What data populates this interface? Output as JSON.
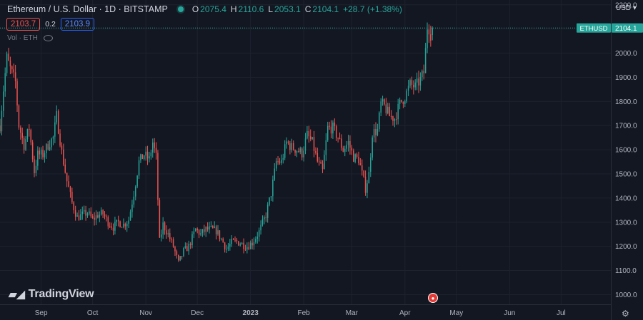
{
  "header": {
    "title": "Ethereum / U.S. Dollar · 1D · BITSTAMP",
    "ohlc": [
      {
        "k": "O",
        "v": "2075.4"
      },
      {
        "k": "H",
        "v": "2110.6"
      },
      {
        "k": "L",
        "v": "2053.1"
      },
      {
        "k": "C",
        "v": "2104.1"
      }
    ],
    "change": "+28.7 (+1.38%)",
    "bid": "2103.7",
    "spread": "0.2",
    "ask": "2103.9",
    "volume_label": "Vol · ETH"
  },
  "currency_label": "USD",
  "brand": "TradingView",
  "colors": {
    "up": "#26a69a",
    "down": "#ef5350",
    "background": "#131722",
    "grid": "#2a2e39"
  },
  "chart_data": {
    "type": "candlestick",
    "symbol_label": "ETHUSD",
    "last_price": 2104.1,
    "last_price_label": "2104.1",
    "y_ticks": [
      1000,
      1100,
      1200,
      1300,
      1400,
      1500,
      1600,
      1700,
      1800,
      1900,
      2000,
      2100,
      2200
    ],
    "y_tick_labels": [
      "1000.0",
      "1100.0",
      "1200.0",
      "1300.0",
      "1400.0",
      "1500.0",
      "1600.0",
      "1700.0",
      "1800.0",
      "1900.0",
      "2000.0",
      "2100.0",
      "2200.0"
    ],
    "x_ticks": [
      {
        "label": "Sep",
        "date": "2022-09-01"
      },
      {
        "label": "Oct",
        "date": "2022-10-01"
      },
      {
        "label": "Nov",
        "date": "2022-11-01"
      },
      {
        "label": "Dec",
        "date": "2022-12-01"
      },
      {
        "label": "2023",
        "date": "2023-01-01"
      },
      {
        "label": "Feb",
        "date": "2023-02-01"
      },
      {
        "label": "Mar",
        "date": "2023-03-01"
      },
      {
        "label": "Apr",
        "date": "2023-04-01"
      },
      {
        "label": "May",
        "date": "2023-05-01"
      },
      {
        "label": "Jun",
        "date": "2023-06-01"
      },
      {
        "label": "Jul",
        "date": "2023-07-01"
      }
    ],
    "x_range": [
      "2022-08-08",
      "2023-07-30"
    ],
    "y_range": [
      960,
      2220
    ],
    "keypoints": [
      [
        "2022-08-08",
        1700
      ],
      [
        "2022-08-10",
        1850
      ],
      [
        "2022-08-12",
        1980
      ],
      [
        "2022-08-14",
        1935
      ],
      [
        "2022-08-17",
        1880
      ],
      [
        "2022-08-19",
        1700
      ],
      [
        "2022-08-22",
        1620
      ],
      [
        "2022-08-25",
        1690
      ],
      [
        "2022-08-28",
        1510
      ],
      [
        "2022-08-30",
        1580
      ],
      [
        "2022-09-02",
        1580
      ],
      [
        "2022-09-05",
        1620
      ],
      [
        "2022-09-08",
        1650
      ],
      [
        "2022-09-10",
        1740
      ],
      [
        "2022-09-13",
        1590
      ],
      [
        "2022-09-16",
        1470
      ],
      [
        "2022-09-19",
        1380
      ],
      [
        "2022-09-22",
        1320
      ],
      [
        "2022-09-25",
        1330
      ],
      [
        "2022-09-28",
        1340
      ],
      [
        "2022-10-01",
        1310
      ],
      [
        "2022-10-04",
        1330
      ],
      [
        "2022-10-07",
        1335
      ],
      [
        "2022-10-10",
        1300
      ],
      [
        "2022-10-13",
        1280
      ],
      [
        "2022-10-16",
        1300
      ],
      [
        "2022-10-19",
        1290
      ],
      [
        "2022-10-22",
        1310
      ],
      [
        "2022-10-25",
        1420
      ],
      [
        "2022-10-28",
        1550
      ],
      [
        "2022-10-31",
        1580
      ],
      [
        "2022-11-03",
        1560
      ],
      [
        "2022-11-05",
        1630
      ],
      [
        "2022-11-07",
        1570
      ],
      [
        "2022-11-09",
        1220
      ],
      [
        "2022-11-11",
        1290
      ],
      [
        "2022-11-14",
        1250
      ],
      [
        "2022-11-17",
        1200
      ],
      [
        "2022-11-20",
        1130
      ],
      [
        "2022-11-23",
        1180
      ],
      [
        "2022-11-26",
        1200
      ],
      [
        "2022-11-30",
        1270
      ],
      [
        "2022-12-03",
        1250
      ],
      [
        "2022-12-06",
        1270
      ],
      [
        "2022-12-09",
        1270
      ],
      [
        "2022-12-12",
        1265
      ],
      [
        "2022-12-15",
        1230
      ],
      [
        "2022-12-18",
        1190
      ],
      [
        "2022-12-21",
        1215
      ],
      [
        "2022-12-24",
        1220
      ],
      [
        "2022-12-27",
        1210
      ],
      [
        "2022-12-30",
        1200
      ],
      [
        "2023-01-02",
        1215
      ],
      [
        "2023-01-06",
        1260
      ],
      [
        "2023-01-10",
        1330
      ],
      [
        "2023-01-13",
        1420
      ],
      [
        "2023-01-16",
        1550
      ],
      [
        "2023-01-19",
        1550
      ],
      [
        "2023-01-22",
        1630
      ],
      [
        "2023-01-25",
        1610
      ],
      [
        "2023-01-28",
        1600
      ],
      [
        "2023-01-31",
        1585
      ],
      [
        "2023-02-03",
        1660
      ],
      [
        "2023-02-06",
        1630
      ],
      [
        "2023-02-09",
        1550
      ],
      [
        "2023-02-12",
        1510
      ],
      [
        "2023-02-15",
        1690
      ],
      [
        "2023-02-18",
        1690
      ],
      [
        "2023-02-21",
        1650
      ],
      [
        "2023-02-24",
        1600
      ],
      [
        "2023-02-27",
        1630
      ],
      [
        "2023-03-02",
        1570
      ],
      [
        "2023-03-05",
        1560
      ],
      [
        "2023-03-09",
        1440
      ],
      [
        "2023-03-11",
        1500
      ],
      [
        "2023-03-13",
        1670
      ],
      [
        "2023-03-16",
        1680
      ],
      [
        "2023-03-18",
        1790
      ],
      [
        "2023-03-20",
        1780
      ],
      [
        "2023-03-23",
        1740
      ],
      [
        "2023-03-26",
        1730
      ],
      [
        "2023-03-29",
        1790
      ],
      [
        "2023-04-01",
        1820
      ],
      [
        "2023-04-04",
        1870
      ],
      [
        "2023-04-07",
        1860
      ],
      [
        "2023-04-10",
        1890
      ],
      [
        "2023-04-12",
        1920
      ],
      [
        "2023-04-13",
        2010
      ],
      [
        "2023-04-14",
        2110
      ],
      [
        "2023-04-15",
        2105
      ],
      [
        "2023-04-16",
        2080
      ],
      [
        "2023-04-17",
        2104.1
      ]
    ]
  }
}
